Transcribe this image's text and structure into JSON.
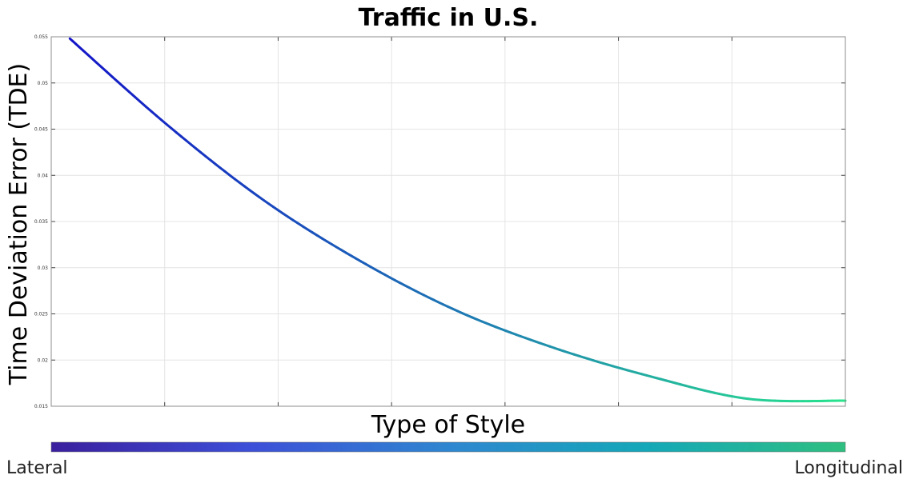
{
  "chart_data": {
    "type": "line",
    "title": "Traffic in U.S.",
    "xlabel": "Type of Style",
    "ylabel": "Time Deviation Error (TDE)",
    "ylim": [
      0.015,
      0.055
    ],
    "y_ticks": [
      "0.015",
      "0.02",
      "0.025",
      "0.03",
      "0.035",
      "0.04",
      "0.045",
      "0.05",
      "0.055"
    ],
    "x_tick_count": 7,
    "grid": true,
    "series": [
      {
        "x": [
          0.0,
          0.125,
          0.25,
          0.375,
          0.5,
          0.625,
          0.75,
          0.875,
          1.0
        ],
        "values": [
          0.0548,
          0.0455,
          0.0373,
          0.0307,
          0.0253,
          0.0213,
          0.0182,
          0.0158,
          0.0156
        ],
        "color_start": "#1414c8",
        "color_mid": "#1e78b4",
        "color_end": "#28e68c"
      }
    ],
    "colorbar": {
      "left_label": "Lateral",
      "right_label": "Longitudinal",
      "colors": [
        "#3a1f9e",
        "#3d4fd8",
        "#2f86d0",
        "#14a8b8",
        "#2fbf80"
      ]
    }
  }
}
